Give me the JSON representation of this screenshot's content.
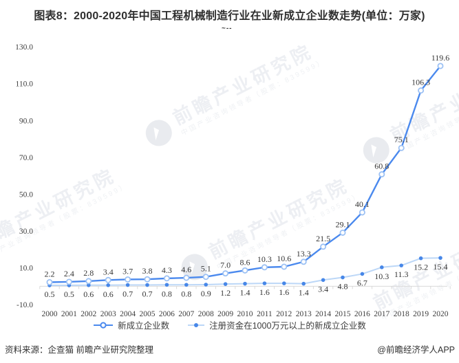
{
  "title": "图表8：2000-2020年中国工程机械制造行业在业新成立企业数走势(单位：万家)",
  "subtitle_mark": "~--",
  "watermark": {
    "brand_text": "前瞻产业研究院",
    "brand_subtext": "中国产业咨询领导者（股票：839599）"
  },
  "chart_data": {
    "type": "line",
    "title": "2000-2020年中国工程机械制造行业在业新成立企业数走势",
    "unit": "万家",
    "grid": false,
    "legend_position": "bottom",
    "ylim": [
      -10,
      130
    ],
    "y_ticks": [
      "130.0",
      "110.0",
      "90.0",
      "70.0",
      "50.0",
      "30.0",
      "10.0",
      "-10.0"
    ],
    "categories": [
      "2000",
      "2001",
      "2002",
      "2003",
      "2004",
      "2005",
      "2006",
      "2007",
      "2008",
      "2009",
      "2010",
      "2011",
      "2012",
      "2013",
      "2014",
      "2015",
      "2016",
      "2017",
      "2018",
      "2019",
      "2020"
    ],
    "series": [
      {
        "name": "新成立企业数",
        "values": [
          2.2,
          2.4,
          2.8,
          3.4,
          3.7,
          3.8,
          4.3,
          4.6,
          5.1,
          7.0,
          8.6,
          10.3,
          10.6,
          13.3,
          21.5,
          29.1,
          40.1,
          60.8,
          75.1,
          106.3,
          119.6
        ],
        "line_color": "#4a89ee",
        "marker": "open-circle",
        "marker_stroke": "#9cc1f4",
        "marker_fill": "#ffffff"
      },
      {
        "name": "注册资金在1000万元以上的新成立企业数",
        "values": [
          0.5,
          0.5,
          0.6,
          0.6,
          0.7,
          0.7,
          0.8,
          0.8,
          0.9,
          1.2,
          1.4,
          1.6,
          1.6,
          1.4,
          3.4,
          4.8,
          6.7,
          10.3,
          11.3,
          15.2,
          15.4
        ],
        "line_color": "#bcd7f7",
        "marker": "solid-dot",
        "marker_fill": "#4787e8"
      }
    ],
    "axis_color": "#d9d9d9"
  },
  "footer": {
    "source": "资料来源：企查猫 前瞻产业研究院整理",
    "credit": "@前瞻经济学人APP"
  }
}
